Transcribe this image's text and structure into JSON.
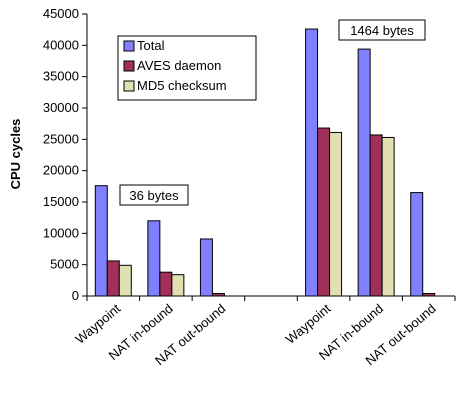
{
  "chart_data": {
    "type": "bar",
    "ylabel": "CPU cycles",
    "ylim": [
      0,
      45000
    ],
    "yticks": [
      0,
      5000,
      10000,
      15000,
      20000,
      25000,
      30000,
      35000,
      40000,
      45000
    ],
    "grid": false,
    "legend_placement": "top-left",
    "categories": [
      "Waypoint",
      "NAT in-bound",
      "NAT out-bound",
      "Waypoint",
      "NAT in-bound",
      "NAT out-bound"
    ],
    "series": [
      {
        "name": "Total",
        "color": "#8080ff",
        "values": [
          17600,
          12000,
          9100,
          42600,
          39400,
          16500
        ]
      },
      {
        "name": "AVES daemon",
        "color": "#a0305a",
        "values": [
          5600,
          3800,
          400,
          26800,
          25700,
          400
        ]
      },
      {
        "name": "MD5 checksum",
        "color": "#e0e0b0",
        "values": [
          4900,
          3400,
          0,
          26100,
          25300,
          0
        ]
      }
    ],
    "annotations": [
      {
        "text": "36 bytes"
      },
      {
        "text": "1464 bytes"
      }
    ]
  }
}
